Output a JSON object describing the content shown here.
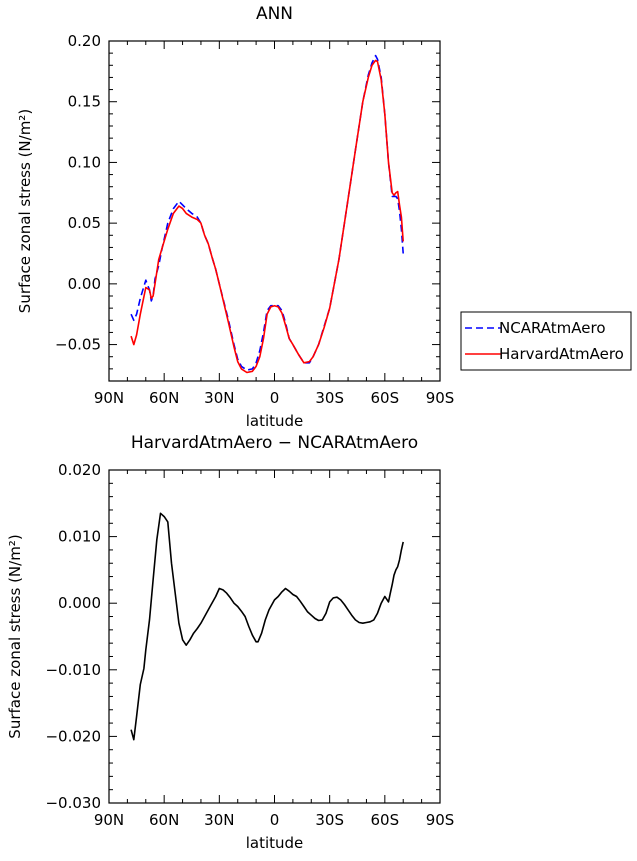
{
  "chart_data": [
    {
      "type": "line",
      "title": "ANN",
      "xlabel": "latitude",
      "ylabel": "Surface zonal stress (N/m²)",
      "xlim": [
        90,
        -90
      ],
      "ylim": [
        -0.08,
        0.2
      ],
      "x_ticks": [
        90,
        60,
        30,
        0,
        -30,
        -60,
        -90
      ],
      "x_tick_labels": [
        "90N",
        "60N",
        "30N",
        "0",
        "30S",
        "60S",
        "90S"
      ],
      "y_ticks": [
        -0.05,
        0.0,
        0.05,
        0.1,
        0.15,
        0.2
      ],
      "y_tick_labels": [
        "−0.05",
        "0.00",
        "0.05",
        "0.10",
        "0.15",
        "0.20"
      ],
      "legend_position": "right",
      "series": [
        {
          "name": "NCARAtmAero",
          "color": "#0000ff",
          "dash": "dashed",
          "x": [
            78,
            76.5,
            75,
            73,
            70,
            68,
            67,
            66,
            65,
            63,
            61,
            58,
            55,
            52,
            50,
            48,
            45,
            42,
            40,
            38,
            36,
            34,
            32,
            30,
            25,
            22,
            20,
            18,
            15,
            12,
            10,
            8,
            6,
            4,
            2,
            0,
            -2,
            -4,
            -6,
            -8,
            -10,
            -13,
            -16,
            -19,
            -21,
            -24,
            -27,
            -30,
            -35,
            -40,
            -44,
            -48,
            -51,
            -53,
            -55,
            -56,
            -58,
            -60,
            -62,
            -64,
            -65,
            -66,
            -67,
            -68,
            -69,
            -70
          ],
          "y": [
            -0.025,
            -0.03,
            -0.025,
            -0.012,
            0.003,
            -0.005,
            -0.014,
            -0.01,
            0.004,
            0.015,
            0.03,
            0.05,
            0.062,
            0.068,
            0.065,
            0.062,
            0.058,
            0.055,
            0.05,
            0.04,
            0.033,
            0.022,
            0.012,
            0.0,
            -0.03,
            -0.05,
            -0.062,
            -0.068,
            -0.071,
            -0.07,
            -0.065,
            -0.055,
            -0.04,
            -0.022,
            -0.018,
            -0.018,
            -0.018,
            -0.022,
            -0.032,
            -0.045,
            -0.05,
            -0.058,
            -0.065,
            -0.065,
            -0.06,
            -0.05,
            -0.035,
            -0.02,
            0.02,
            0.07,
            0.11,
            0.15,
            0.172,
            0.182,
            0.188,
            0.185,
            0.17,
            0.14,
            0.1,
            0.072,
            0.072,
            0.072,
            0.07,
            0.06,
            0.045,
            0.025
          ]
        },
        {
          "name": "HarvardAtmAero",
          "color": "#ff0000",
          "dash": "solid",
          "x": [
            78,
            76.5,
            75,
            73,
            70,
            68,
            67,
            66,
            65,
            63,
            61,
            58,
            55,
            52,
            50,
            48,
            45,
            42,
            40,
            38,
            36,
            34,
            32,
            30,
            25,
            22,
            20,
            18,
            15,
            12,
            10,
            8,
            6,
            4,
            2,
            0,
            -2,
            -4,
            -6,
            -8,
            -10,
            -13,
            -16,
            -19,
            -21,
            -24,
            -27,
            -30,
            -35,
            -40,
            -44,
            -48,
            -51,
            -53,
            -55,
            -56,
            -58,
            -60,
            -62,
            -64,
            -65,
            -66,
            -67,
            -68,
            -69,
            -70
          ],
          "y": [
            -0.043,
            -0.05,
            -0.042,
            -0.025,
            -0.003,
            -0.005,
            -0.012,
            -0.01,
            0.0,
            0.02,
            0.03,
            0.045,
            0.058,
            0.064,
            0.062,
            0.058,
            0.055,
            0.053,
            0.05,
            0.04,
            0.033,
            0.022,
            0.012,
            0.0,
            -0.032,
            -0.052,
            -0.064,
            -0.07,
            -0.073,
            -0.072,
            -0.068,
            -0.06,
            -0.045,
            -0.025,
            -0.019,
            -0.018,
            -0.019,
            -0.024,
            -0.034,
            -0.045,
            -0.05,
            -0.058,
            -0.065,
            -0.064,
            -0.06,
            -0.05,
            -0.036,
            -0.02,
            0.02,
            0.07,
            0.11,
            0.15,
            0.17,
            0.18,
            0.184,
            0.183,
            0.168,
            0.14,
            0.1,
            0.075,
            0.073,
            0.075,
            0.076,
            0.065,
            0.055,
            0.035
          ]
        }
      ]
    },
    {
      "type": "line",
      "title": "HarvardAtmAero − NCARAtmAero",
      "xlabel": "latitude",
      "ylabel": "Surface zonal stress (N/m²)",
      "xlim": [
        90,
        -90
      ],
      "ylim": [
        -0.03,
        0.02
      ],
      "x_ticks": [
        90,
        60,
        30,
        0,
        -30,
        -60,
        -90
      ],
      "x_tick_labels": [
        "90N",
        "60N",
        "30N",
        "0",
        "30S",
        "60S",
        "90S"
      ],
      "y_ticks": [
        -0.03,
        -0.02,
        -0.01,
        0.0,
        0.01,
        0.02
      ],
      "y_tick_labels": [
        "−0.030",
        "−0.020",
        "−0.010",
        "0.000",
        "0.010",
        "0.020"
      ],
      "series": [
        {
          "color": "#000000",
          "dash": "solid",
          "x": [
            78,
            76.5,
            75,
            73,
            71,
            70,
            68,
            66,
            64,
            62,
            60,
            58,
            56,
            54,
            52,
            50,
            48,
            46,
            44,
            42,
            40,
            38,
            35,
            32,
            30,
            28,
            26,
            24,
            22,
            20,
            18,
            16,
            14,
            12,
            10,
            9,
            7,
            5,
            3,
            0,
            -2,
            -4,
            -6,
            -8,
            -10,
            -12,
            -14,
            -16,
            -18,
            -20,
            -22,
            -24,
            -26,
            -28,
            -30,
            -32,
            -34,
            -36,
            -38,
            -40,
            -42,
            -44,
            -46,
            -48,
            -50,
            -52,
            -54,
            -56,
            -58,
            -60,
            -61,
            -62,
            -63,
            -64,
            -65,
            -66,
            -67,
            -68,
            -69,
            -70
          ],
          "y": [
            -0.019,
            -0.0205,
            -0.017,
            -0.0122,
            -0.0098,
            -0.007,
            -0.0025,
            0.0035,
            0.0095,
            0.0135,
            0.013,
            0.0122,
            0.006,
            0.0015,
            -0.003,
            -0.0055,
            -0.0063,
            -0.0055,
            -0.0045,
            -0.0038,
            -0.003,
            -0.002,
            -0.0005,
            0.001,
            0.0022,
            0.002,
            0.0015,
            0.0008,
            0.0,
            -0.0005,
            -0.0012,
            -0.002,
            -0.0035,
            -0.0048,
            -0.0058,
            -0.0058,
            -0.0045,
            -0.0025,
            -0.001,
            0.0005,
            0.001,
            0.0017,
            0.0022,
            0.0018,
            0.0013,
            0.001,
            0.0003,
            -0.0005,
            -0.0013,
            -0.0018,
            -0.0023,
            -0.0026,
            -0.0025,
            -0.0015,
            0.0002,
            0.0008,
            0.0009,
            0.0005,
            -0.0002,
            -0.001,
            -0.0018,
            -0.0025,
            -0.0029,
            -0.003,
            -0.0029,
            -0.0028,
            -0.0025,
            -0.0015,
            0.0,
            0.001,
            0.0006,
            0.0002,
            0.0015,
            0.0028,
            0.0042,
            0.005,
            0.0055,
            0.0065,
            0.008,
            0.0092
          ]
        }
      ]
    }
  ]
}
